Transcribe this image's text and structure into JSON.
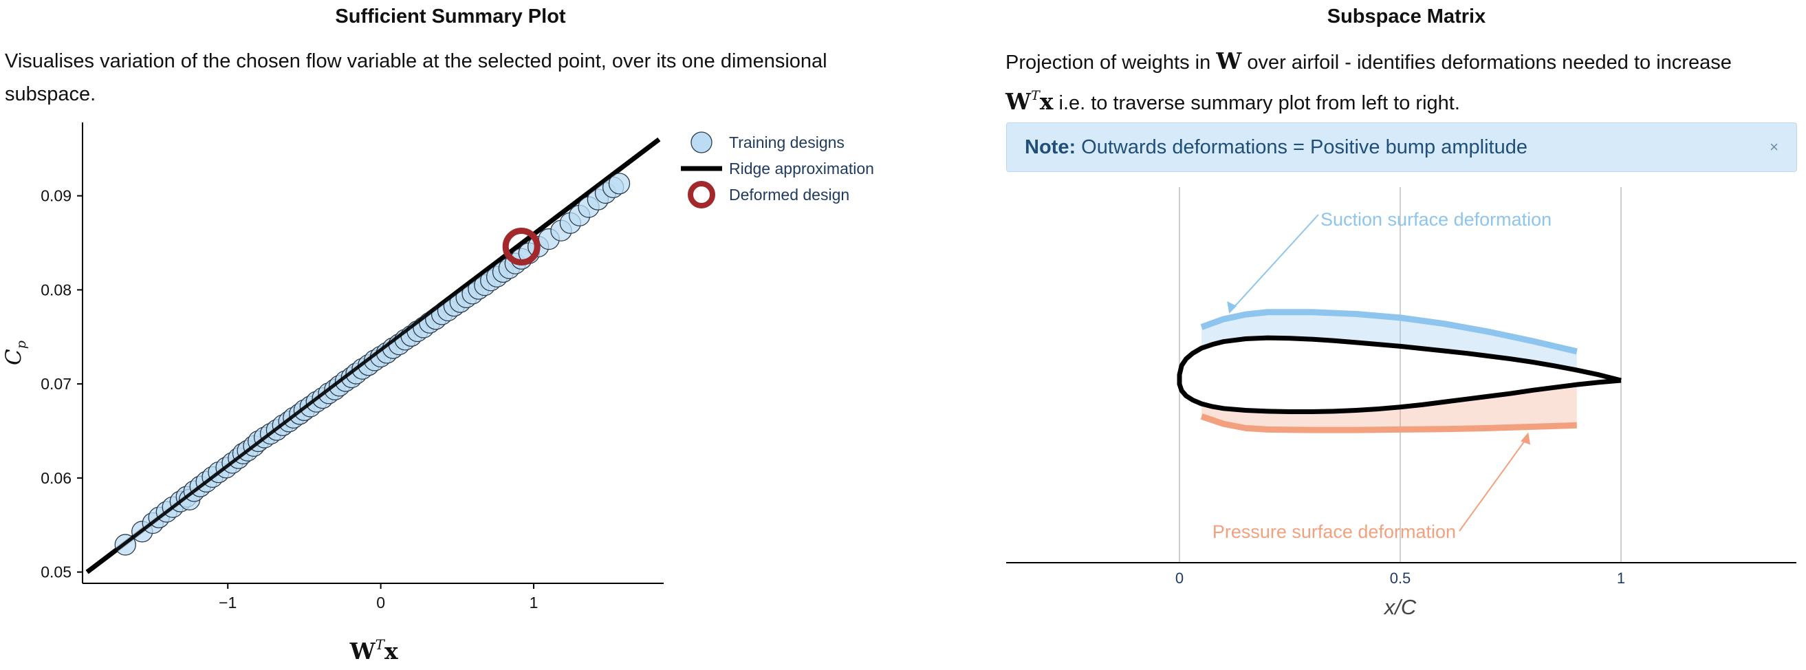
{
  "left": {
    "title": "Sufficient Summary Plot",
    "description": "Visualises variation of the chosen flow variable at the selected point, over its one dimensional subspace."
  },
  "right": {
    "title": "Subspace Matrix",
    "description_part1": "Projection of weights in ",
    "description_W": "W",
    "description_part2": " over airfoil - identifies deformations needed to increase",
    "description_W2": "W",
    "description_T": "T",
    "description_x": "x",
    "description_part3": " i.e. to traverse summary plot from left to right.",
    "note_label": "Note:",
    "note_text": " Outwards deformations = Positive bump amplitude",
    "note_close": "×"
  },
  "colors": {
    "training_fill": "#bcdcf3",
    "training_stroke": "#2a3b4c",
    "ridge": "#000000",
    "deformed": "#a3282b",
    "suction": "#8ec5ee",
    "pressure": "#f3a07f",
    "axis_label_color": "#1f3a5f"
  },
  "chart_data": [
    {
      "type": "scatter",
      "title": "Sufficient Summary Plot",
      "xlabel_main": "W",
      "xlabel_sup": "T",
      "xlabel_tail": "x",
      "ylabel_main": "C",
      "ylabel_sub": "p",
      "xlim": [
        -1.95,
        1.85
      ],
      "ylim": [
        0.0488,
        0.0978
      ],
      "xticks": [
        -1,
        0,
        1
      ],
      "xtick_labels": [
        "−1",
        "0",
        "1"
      ],
      "yticks": [
        0.05,
        0.06,
        0.07,
        0.08,
        0.09
      ],
      "ytick_labels": [
        "0.05",
        "0.06",
        "0.07",
        "0.08",
        "0.09"
      ],
      "legend_position": "top-right",
      "series": [
        {
          "name": "Training designs",
          "kind": "markers",
          "x": [
            -1.67,
            -1.56,
            -1.49,
            -1.45,
            -1.4,
            -1.36,
            -1.31,
            -1.27,
            -1.25,
            -1.22,
            -1.18,
            -1.14,
            -1.1,
            -1.06,
            -1.01,
            -0.97,
            -0.93,
            -0.9,
            -0.87,
            -0.83,
            -0.8,
            -0.76,
            -0.72,
            -0.68,
            -0.64,
            -0.6,
            -0.57,
            -0.53,
            -0.5,
            -0.46,
            -0.42,
            -0.38,
            -0.34,
            -0.3,
            -0.27,
            -0.23,
            -0.19,
            -0.16,
            -0.12,
            -0.08,
            -0.04,
            0.0,
            0.04,
            0.08,
            0.12,
            0.16,
            0.2,
            0.24,
            0.28,
            0.32,
            0.36,
            0.4,
            0.44,
            0.48,
            0.52,
            0.56,
            0.6,
            0.64,
            0.68,
            0.72,
            0.76,
            0.8,
            0.84,
            0.88,
            0.92,
            0.97,
            1.03,
            1.1,
            1.18,
            1.24,
            1.3,
            1.36,
            1.42,
            1.47,
            1.52,
            1.56
          ],
          "y": [
            0.0529,
            0.0543,
            0.0552,
            0.0558,
            0.0564,
            0.0569,
            0.0575,
            0.058,
            0.0577,
            0.0586,
            0.0591,
            0.0596,
            0.0601,
            0.0606,
            0.0611,
            0.0616,
            0.0621,
            0.0626,
            0.0629,
            0.0634,
            0.0639,
            0.0643,
            0.0647,
            0.0651,
            0.0656,
            0.066,
            0.0664,
            0.0668,
            0.0672,
            0.0676,
            0.0681,
            0.0685,
            0.069,
            0.0694,
            0.0698,
            0.0703,
            0.0707,
            0.0711,
            0.0716,
            0.072,
            0.0725,
            0.0729,
            0.0733,
            0.0738,
            0.0742,
            0.0747,
            0.0751,
            0.0756,
            0.076,
            0.0765,
            0.0769,
            0.0774,
            0.0778,
            0.0783,
            0.0787,
            0.0792,
            0.0796,
            0.0801,
            0.0805,
            0.081,
            0.0814,
            0.0819,
            0.0823,
            0.0828,
            0.0833,
            0.0839,
            0.0846,
            0.0854,
            0.0863,
            0.0871,
            0.0879,
            0.0888,
            0.0896,
            0.0903,
            0.0909,
            0.0913
          ]
        },
        {
          "name": "Ridge approximation",
          "kind": "line",
          "x": [
            -1.92,
            1.82
          ],
          "y": [
            0.05,
            0.096
          ]
        },
        {
          "name": "Deformed design",
          "kind": "marker-ring",
          "x": [
            0.92
          ],
          "y": [
            0.0846
          ]
        }
      ]
    },
    {
      "type": "line",
      "title": "Subspace Matrix",
      "xlabel": "x/C",
      "xlim": [
        -0.39,
        1.41
      ],
      "ylim": [
        -0.4,
        0.4
      ],
      "xticks": [
        0,
        0.5,
        1
      ],
      "xtick_labels": [
        "0",
        "0.5",
        "1"
      ],
      "grid_x": true,
      "airfoil_upper": {
        "x": [
          1.0,
          0.95,
          0.9,
          0.85,
          0.8,
          0.75,
          0.7,
          0.65,
          0.6,
          0.55,
          0.5,
          0.45,
          0.4,
          0.35,
          0.3,
          0.25,
          0.2,
          0.15,
          0.1,
          0.075,
          0.05,
          0.03,
          0.015,
          0.005,
          0.0
        ],
        "y": [
          0.0,
          0.012,
          0.022,
          0.031,
          0.039,
          0.046,
          0.052,
          0.058,
          0.063,
          0.068,
          0.073,
          0.077,
          0.081,
          0.085,
          0.088,
          0.09,
          0.091,
          0.089,
          0.083,
          0.077,
          0.069,
          0.058,
          0.046,
          0.032,
          0.012
        ]
      },
      "airfoil_lower": {
        "x": [
          0.0,
          0.005,
          0.015,
          0.03,
          0.05,
          0.075,
          0.1,
          0.15,
          0.2,
          0.25,
          0.3,
          0.35,
          0.4,
          0.45,
          0.5,
          0.55,
          0.6,
          0.65,
          0.7,
          0.75,
          0.8,
          0.85,
          0.9,
          0.95,
          1.0
        ],
        "y": [
          -0.008,
          -0.022,
          -0.033,
          -0.042,
          -0.05,
          -0.056,
          -0.06,
          -0.064,
          -0.066,
          -0.067,
          -0.067,
          -0.066,
          -0.064,
          -0.061,
          -0.057,
          -0.052,
          -0.046,
          -0.04,
          -0.034,
          -0.028,
          -0.021,
          -0.015,
          -0.009,
          -0.004,
          0.0
        ]
      },
      "suction_deformation": {
        "x": [
          0.05,
          0.1,
          0.15,
          0.2,
          0.3,
          0.4,
          0.5,
          0.6,
          0.7,
          0.8,
          0.9
        ],
        "y": [
          0.114,
          0.131,
          0.141,
          0.146,
          0.146,
          0.142,
          0.134,
          0.121,
          0.104,
          0.084,
          0.062
        ]
      },
      "pressure_deformation": {
        "x": [
          0.05,
          0.1,
          0.15,
          0.2,
          0.3,
          0.4,
          0.5,
          0.6,
          0.7,
          0.8,
          0.9
        ],
        "y": [
          -0.077,
          -0.093,
          -0.102,
          -0.105,
          -0.106,
          -0.106,
          -0.105,
          -0.104,
          -0.102,
          -0.099,
          -0.096
        ]
      },
      "annotations": [
        {
          "text": "Suction surface deformation",
          "series": "suction"
        },
        {
          "text": "Pressure surface deformation",
          "series": "pressure"
        }
      ]
    }
  ]
}
